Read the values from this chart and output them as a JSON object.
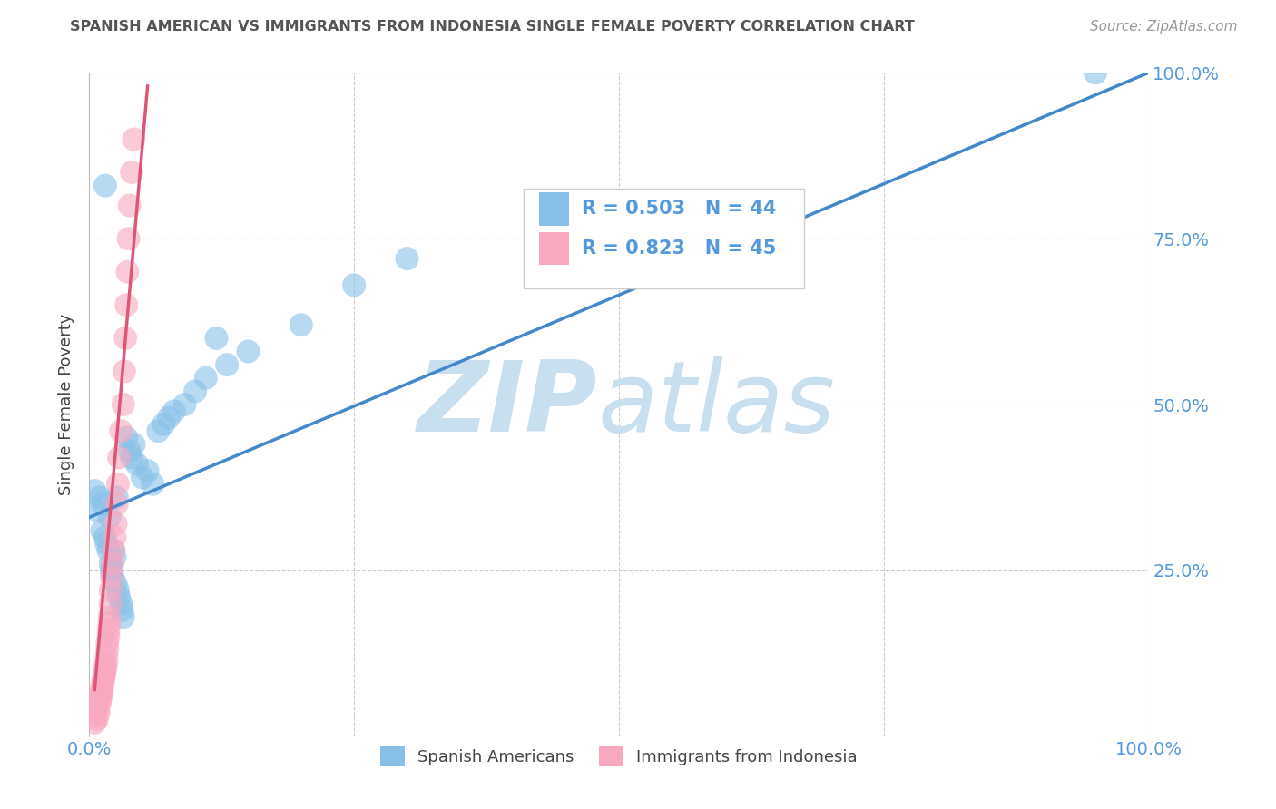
{
  "title": "SPANISH AMERICAN VS IMMIGRANTS FROM INDONESIA SINGLE FEMALE POVERTY CORRELATION CHART",
  "source": "Source: ZipAtlas.com",
  "ylabel": "Single Female Poverty",
  "color_blue": "#88c0e8",
  "color_pink": "#f9a8c0",
  "line_color_blue": "#4488cc",
  "line_color_pink": "#dd5577",
  "watermark_zip": "ZIP",
  "watermark_atlas": "atlas",
  "watermark_color": "#c8dff0",
  "background_color": "#ffffff",
  "grid_color": "#cccccc",
  "title_color": "#555555",
  "ylabel_color": "#444444",
  "tick_label_color": "#5599dd",
  "legend_text_color": "#5599dd",
  "source_color": "#999999",
  "blue_scatter_x": [
    0.005,
    0.008,
    0.01,
    0.012,
    0.013,
    0.015,
    0.016,
    0.018,
    0.019,
    0.02,
    0.021,
    0.022,
    0.023,
    0.024,
    0.025,
    0.026,
    0.027,
    0.028,
    0.03,
    0.031,
    0.032,
    0.035,
    0.038,
    0.04,
    0.042,
    0.045,
    0.05,
    0.055,
    0.06,
    0.065,
    0.07,
    0.075,
    0.08,
    0.09,
    0.1,
    0.11,
    0.13,
    0.15,
    0.2,
    0.25,
    0.3,
    0.95,
    0.015,
    0.12
  ],
  "blue_scatter_y": [
    0.37,
    0.34,
    0.36,
    0.31,
    0.35,
    0.3,
    0.29,
    0.28,
    0.33,
    0.26,
    0.25,
    0.24,
    0.28,
    0.27,
    0.23,
    0.36,
    0.22,
    0.21,
    0.2,
    0.19,
    0.18,
    0.45,
    0.43,
    0.42,
    0.44,
    0.41,
    0.39,
    0.4,
    0.38,
    0.46,
    0.47,
    0.48,
    0.49,
    0.5,
    0.52,
    0.54,
    0.56,
    0.58,
    0.62,
    0.68,
    0.72,
    1.0,
    0.83,
    0.6
  ],
  "pink_scatter_x": [
    0.005,
    0.006,
    0.007,
    0.008,
    0.009,
    0.01,
    0.01,
    0.011,
    0.011,
    0.012,
    0.012,
    0.013,
    0.013,
    0.014,
    0.014,
    0.015,
    0.015,
    0.016,
    0.016,
    0.017,
    0.017,
    0.018,
    0.018,
    0.019,
    0.019,
    0.02,
    0.02,
    0.021,
    0.022,
    0.023,
    0.024,
    0.025,
    0.026,
    0.027,
    0.028,
    0.03,
    0.032,
    0.033,
    0.034,
    0.035,
    0.036,
    0.037,
    0.038,
    0.04,
    0.042
  ],
  "pink_scatter_y": [
    0.02,
    0.03,
    0.025,
    0.04,
    0.035,
    0.05,
    0.055,
    0.06,
    0.065,
    0.07,
    0.075,
    0.08,
    0.085,
    0.09,
    0.095,
    0.1,
    0.105,
    0.11,
    0.12,
    0.13,
    0.14,
    0.15,
    0.16,
    0.17,
    0.18,
    0.2,
    0.22,
    0.24,
    0.26,
    0.28,
    0.3,
    0.32,
    0.35,
    0.38,
    0.42,
    0.46,
    0.5,
    0.55,
    0.6,
    0.65,
    0.7,
    0.75,
    0.8,
    0.85,
    0.9
  ],
  "blue_line": [
    [
      0.0,
      1.0
    ],
    [
      0.33,
      1.0
    ]
  ],
  "pink_line": [
    [
      0.005,
      0.055
    ],
    [
      0.07,
      0.98
    ]
  ]
}
